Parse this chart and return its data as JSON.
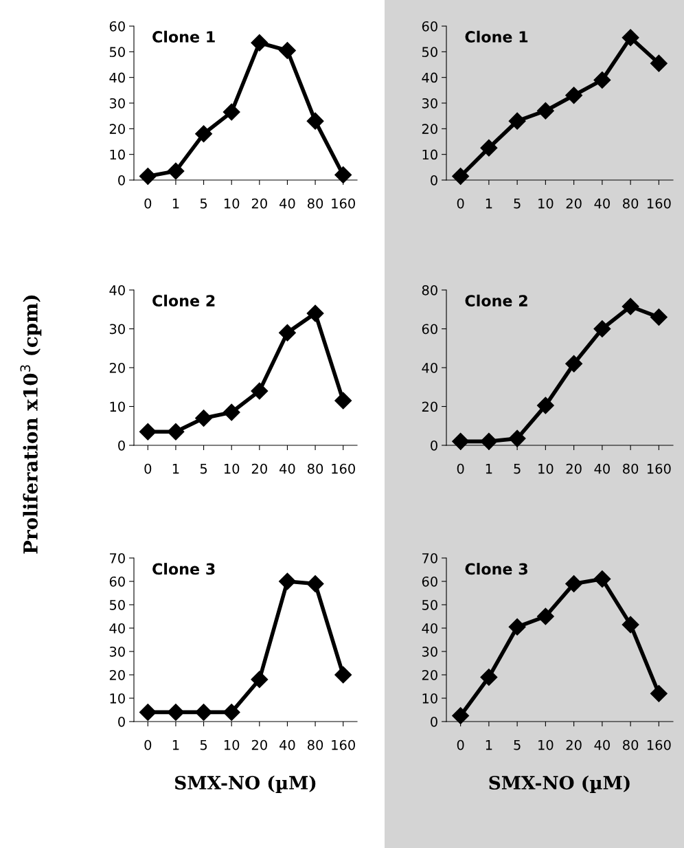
{
  "chart_data": [
    {
      "type": "line",
      "title": "Clone 1",
      "categories": [
        "0",
        "1",
        "5",
        "10",
        "20",
        "40",
        "80",
        "160"
      ],
      "series": [
        {
          "color": "#000000",
          "values": [
            1.5,
            3.5,
            18,
            26.5,
            53.5,
            50.5,
            23,
            2
          ]
        }
      ],
      "ylim": [
        0,
        60
      ],
      "yticks": [
        0,
        10,
        20,
        30,
        40,
        50,
        60
      ],
      "marker": "diamond",
      "grid": false,
      "legend": false
    },
    {
      "type": "line",
      "title": "Clone 1",
      "categories": [
        "0",
        "1",
        "5",
        "10",
        "20",
        "40",
        "80",
        "160"
      ],
      "series": [
        {
          "color": "#000000",
          "values": [
            1.5,
            12.5,
            23,
            27,
            33,
            39,
            55.5,
            45.5
          ]
        }
      ],
      "ylim": [
        0,
        60
      ],
      "yticks": [
        0,
        10,
        20,
        30,
        40,
        50,
        60
      ],
      "marker": "diamond",
      "grid": false,
      "legend": false
    },
    {
      "type": "line",
      "title": "Clone 2",
      "ylabel": "Proliferation x10$^{3}$ (cpm)",
      "categories": [
        "0",
        "1",
        "5",
        "10",
        "20",
        "40",
        "80",
        "160"
      ],
      "series": [
        {
          "color": "#000000",
          "values": [
            3.5,
            3.5,
            7,
            8.5,
            14,
            29,
            34,
            11.5
          ]
        }
      ],
      "ylim": [
        0,
        40
      ],
      "yticks": [
        0,
        10,
        20,
        30,
        40
      ],
      "marker": "diamond",
      "grid": false,
      "legend": false
    },
    {
      "type": "line",
      "title": "Clone 2",
      "categories": [
        "0",
        "1",
        "5",
        "10",
        "20",
        "40",
        "80",
        "160"
      ],
      "series": [
        {
          "color": "#000000",
          "values": [
            2,
            2,
            3.5,
            20.5,
            42,
            60,
            71.5,
            66
          ]
        }
      ],
      "ylim": [
        0,
        80
      ],
      "yticks": [
        0,
        20,
        40,
        60,
        80
      ],
      "marker": "diamond",
      "grid": false,
      "legend": false
    },
    {
      "type": "line",
      "title": "Clone 3",
      "xlabel": "SMX-NO (µM)",
      "categories": [
        "0",
        "1",
        "5",
        "10",
        "20",
        "40",
        "80",
        "160"
      ],
      "series": [
        {
          "color": "#000000",
          "values": [
            4,
            4,
            4,
            4,
            18,
            60,
            59,
            20
          ]
        }
      ],
      "ylim": [
        0,
        70
      ],
      "yticks": [
        0,
        10,
        20,
        30,
        40,
        50,
        60,
        70
      ],
      "marker": "diamond",
      "grid": false,
      "legend": false
    },
    {
      "type": "line",
      "title": "Clone 3",
      "xlabel": "SMX-NO (µM)",
      "categories": [
        "0",
        "1",
        "5",
        "10",
        "20",
        "40",
        "80",
        "160"
      ],
      "series": [
        {
          "color": "#000000",
          "values": [
            2.5,
            19,
            40.5,
            45,
            59,
            61,
            41.5,
            12
          ]
        }
      ],
      "ylim": [
        0,
        70
      ],
      "yticks": [
        0,
        10,
        20,
        30,
        40,
        50,
        60,
        70
      ],
      "marker": "diamond",
      "grid": false,
      "legend": false
    }
  ]
}
